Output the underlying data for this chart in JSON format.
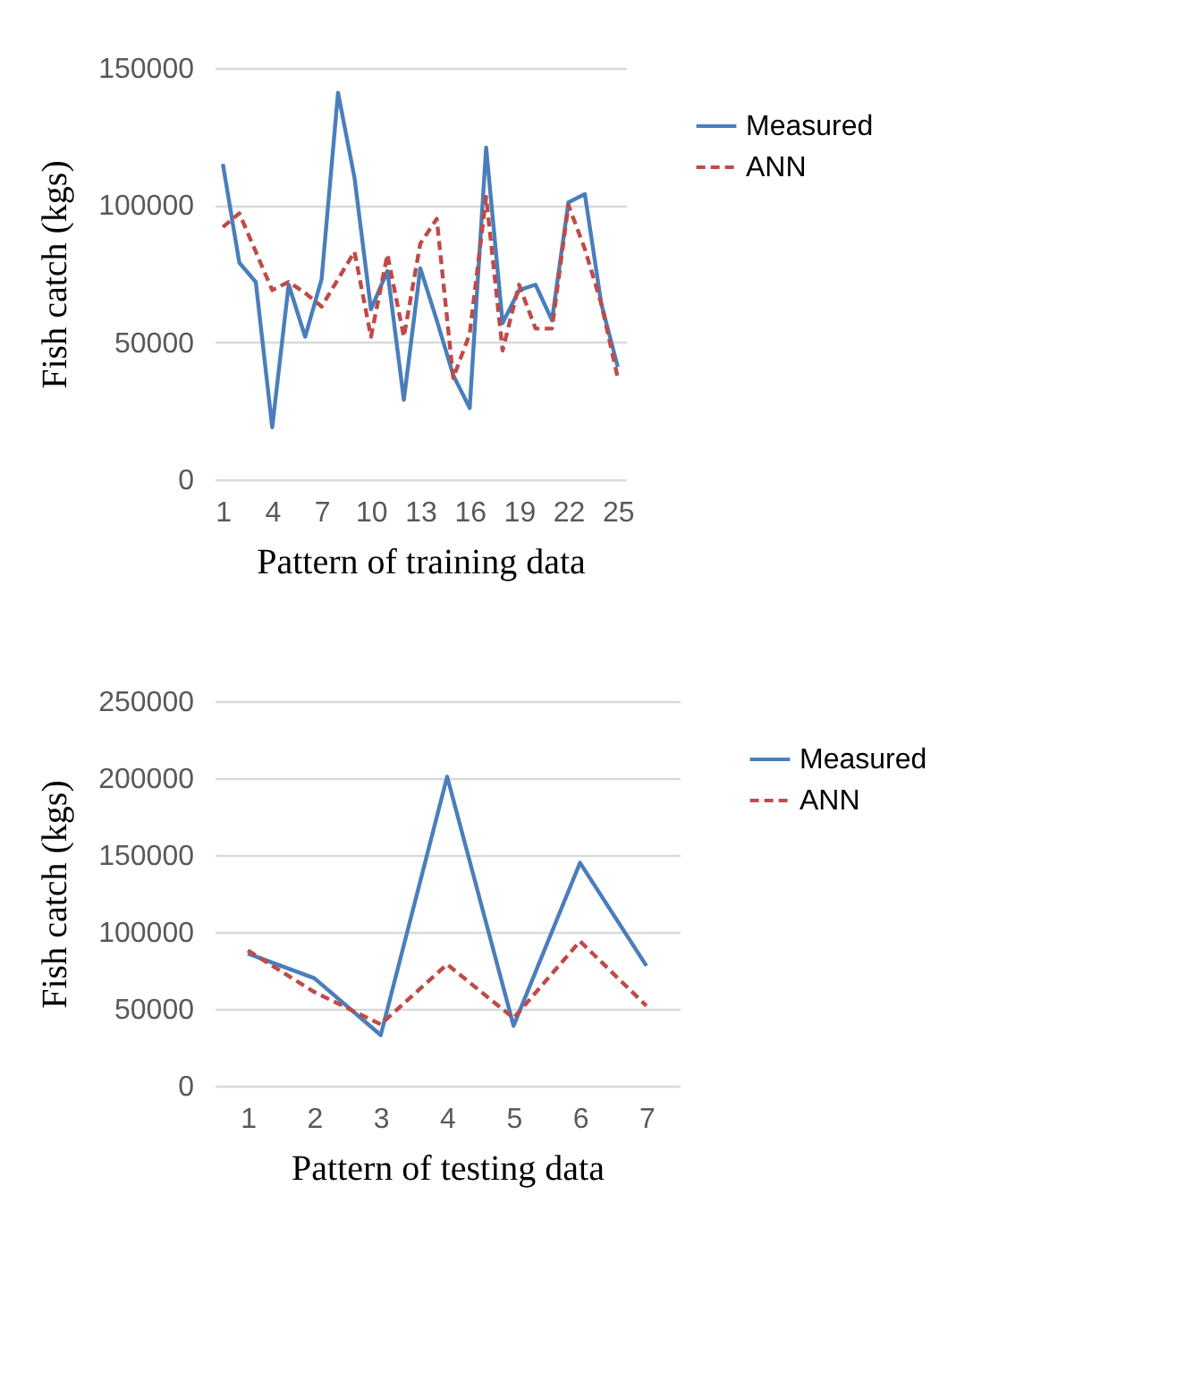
{
  "chart_data": [
    {
      "type": "line",
      "xlabel": "Pattern of training data",
      "ylabel": "Fish catch (kgs)",
      "x": [
        1,
        2,
        3,
        4,
        5,
        6,
        7,
        8,
        9,
        10,
        11,
        12,
        13,
        14,
        15,
        16,
        17,
        18,
        19,
        20,
        21,
        22,
        23,
        24,
        25
      ],
      "xlim": [
        0.5,
        25.5
      ],
      "xticks": [
        1,
        4,
        7,
        10,
        13,
        16,
        19,
        22,
        25
      ],
      "ylim": [
        0,
        150000
      ],
      "yticks": [
        0,
        50000,
        100000,
        150000
      ],
      "grid": "y",
      "legend": "right",
      "marker": "none",
      "series": [
        {
          "name": "Measured",
          "color": "#4a7ebb",
          "line_style": "solid",
          "values": [
            115000,
            79000,
            72000,
            19000,
            71000,
            52000,
            73000,
            141000,
            110000,
            62000,
            76000,
            29000,
            77000,
            58000,
            38000,
            26000,
            121000,
            57000,
            69000,
            71000,
            58000,
            101000,
            104000,
            64000,
            41000
          ]
        },
        {
          "name": "ANN",
          "color": "#be4b48",
          "line_style": "dashed",
          "values": [
            92000,
            97000,
            83000,
            69000,
            72000,
            68000,
            63000,
            73000,
            83000,
            52000,
            82000,
            52000,
            86000,
            95000,
            37000,
            53000,
            103000,
            47000,
            71000,
            55000,
            55000,
            100000,
            84000,
            64000,
            37000
          ]
        }
      ]
    },
    {
      "type": "line",
      "xlabel": "Pattern of testing data",
      "ylabel": "Fish catch (kgs)",
      "x": [
        1,
        2,
        3,
        4,
        5,
        6,
        7
      ],
      "xlim": [
        0.5,
        7.5
      ],
      "xticks": [
        1,
        2,
        3,
        4,
        5,
        6,
        7
      ],
      "ylim": [
        0,
        250000
      ],
      "yticks": [
        0,
        50000,
        100000,
        150000,
        200000,
        250000
      ],
      "grid": "y",
      "legend": "right",
      "marker": "none",
      "series": [
        {
          "name": "Measured",
          "color": "#4a7ebb",
          "line_style": "solid",
          "values": [
            86000,
            70000,
            33000,
            201000,
            39000,
            145000,
            78000
          ]
        },
        {
          "name": "ANN",
          "color": "#be4b48",
          "line_style": "dashed",
          "values": [
            88000,
            61000,
            40000,
            79000,
            44000,
            94000,
            52000
          ]
        }
      ]
    }
  ]
}
